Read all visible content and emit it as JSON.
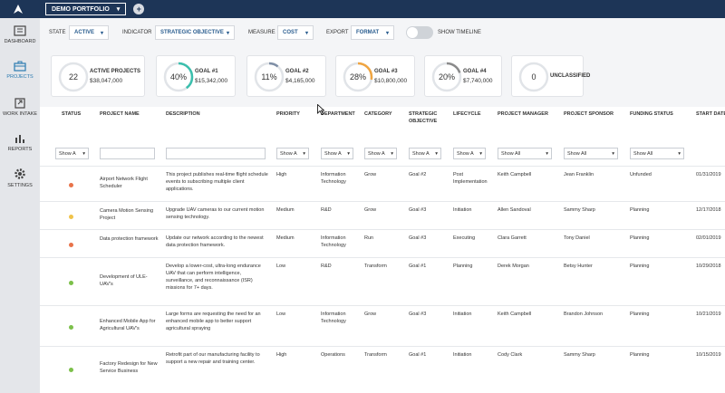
{
  "topbar": {
    "portfolio": "DEMO PORTFOLIO",
    "portfolio_caret": "▾",
    "add_label": "+"
  },
  "sidebar": {
    "items": [
      {
        "label": "DASHBOARD"
      },
      {
        "label": "PROJECTS"
      },
      {
        "label": "WORK INTAKE"
      },
      {
        "label": "REPORTS"
      },
      {
        "label": "SETTINGS"
      }
    ]
  },
  "filters": {
    "state_label": "STATE",
    "state_value": "ACTIVE",
    "indicator_label": "INDICATOR",
    "indicator_value": "STRATEGIC OBJECTIVE",
    "measure_label": "MEASURE",
    "measure_value": "COST",
    "export_label": "EXPORT",
    "export_value": "FORMAT",
    "timeline_label": "SHOW TIMELINE",
    "caret": "▾"
  },
  "cards": [
    {
      "center": "22",
      "title": "ACTIVE PROJECTS",
      "sub": "$38,047,000",
      "pct": 0,
      "color": "#cfd3d8"
    },
    {
      "center": "40%",
      "title": "GOAL #1",
      "sub": "$15,342,000",
      "pct": 40,
      "color": "#3bbfad"
    },
    {
      "center": "11%",
      "title": "GOAL #2",
      "sub": "$4,165,000",
      "pct": 11,
      "color": "#7f8fa6"
    },
    {
      "center": "28%",
      "title": "GOAL #3",
      "sub": "$10,800,000",
      "pct": 28,
      "color": "#f0a541"
    },
    {
      "center": "20%",
      "title": "GOAL #4",
      "sub": "$7,740,000",
      "pct": 20,
      "color": "#8a8a8a"
    },
    {
      "center": "0",
      "title": "UNCLASSIFIED",
      "sub": "",
      "pct": 0,
      "color": "#cfd3d8"
    }
  ],
  "table": {
    "headers": [
      "STATUS",
      "PROJECT NAME",
      "DESCRIPTION",
      "PRIORITY",
      "DEPARTMENT",
      "CATEGORY",
      "STRATEGIC OBJECTIVE",
      "LIFECYCLE",
      "PROJECT MANAGER",
      "PROJECT SPONSOR",
      "FUNDING STATUS",
      "START DATE"
    ],
    "filters": {
      "show_short": "Show A",
      "show_all": "Show All",
      "caret": "▾"
    },
    "rows": [
      {
        "status_color": "#e8734a",
        "name": "Airport Network Flight Scheduler",
        "desc": "This project publishes real-time flight schedule events to subscribing multiple client applications.",
        "priority": "High",
        "department": "Information Technology",
        "category": "Grow",
        "objective": "Goal #2",
        "lifecycle": "Post Implementation",
        "manager": "Keith Campbell",
        "sponsor": "Jean Franklin",
        "funding": "Unfunded",
        "start": "01/31/2019"
      },
      {
        "status_color": "#f0c34a",
        "name": "Camera Motion Sensing Project",
        "desc": "Upgrade UAV cameras to our current motion sensing technology.",
        "priority": "Medium",
        "department": "R&D",
        "category": "Grow",
        "objective": "Goal #3",
        "lifecycle": "Initiation",
        "manager": "Allen Sandoval",
        "sponsor": "Sammy Sharp",
        "funding": "Planning",
        "start": "12/17/2018"
      },
      {
        "status_color": "#e8734a",
        "name": "Data protection framework",
        "desc": "Update our network according to the newest data protection framework.",
        "priority": "Medium",
        "department": "Information Technology",
        "category": "Run",
        "objective": "Goal #3",
        "lifecycle": "Executing",
        "manager": "Clara Garrett",
        "sponsor": "Tony Daniel",
        "funding": "Planning",
        "start": "02/01/2019"
      },
      {
        "status_color": "#7cc04a",
        "name": "Development of ULE-UAV's",
        "desc": "Develop a lower-cost, ultra-long endurance UAV that can perform intelligence, surveillance, and reconnaissance (ISR) missions for 7+ days.",
        "priority": "Low",
        "department": "R&D",
        "category": "Transform",
        "objective": "Goal #1",
        "lifecycle": "Planning",
        "manager": "Derek Morgan",
        "sponsor": "Betsy Hunter",
        "funding": "Planning",
        "start": "10/29/2018"
      },
      {
        "status_color": "#7cc04a",
        "name": "Enhanced Mobile App for Agricultural UAV's",
        "desc": "Large forms are requesting the need for an enhanced mobile app to better support agricultural spraying",
        "priority": "Low",
        "department": "Information Technology",
        "category": "Grow",
        "objective": "Goal #3",
        "lifecycle": "Initiation",
        "manager": "Keith Campbell",
        "sponsor": "Brandon Johnson",
        "funding": "Planning",
        "start": "10/21/2019"
      },
      {
        "status_color": "#7cc04a",
        "name": "Factory Redesign for New Service Business",
        "desc": "Retrofit part of our manufacturing facility to support a new repair and training center.",
        "priority": "High",
        "department": "Operations",
        "category": "Transform",
        "objective": "Goal #1",
        "lifecycle": "Initiation",
        "manager": "Cody Clark",
        "sponsor": "Sammy Sharp",
        "funding": "Planning",
        "start": "10/15/2019"
      }
    ]
  }
}
